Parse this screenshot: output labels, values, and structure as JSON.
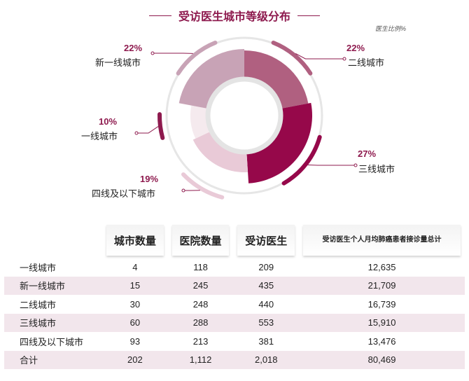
{
  "title": "受访医生城市等级分布",
  "unit_note": "医生比例%",
  "colors": {
    "accent": "#8e1a4e",
    "slices": [
      "#b06080",
      "#96084a",
      "#e9cad7",
      "#f5eaee",
      "#c8a3b6"
    ]
  },
  "chart_data": {
    "type": "pie",
    "title": "受访医生城市等级分布",
    "categories": [
      "二线城市",
      "三线城市",
      "四线及以下城市",
      "一线城市",
      "新一线城市"
    ],
    "values": [
      22,
      27,
      19,
      10,
      22
    ],
    "labels": [
      "22%",
      "27%",
      "19%",
      "10%",
      "22%"
    ]
  },
  "table": {
    "headers": [
      "",
      "城市数量",
      "医院数量",
      "受访医生",
      "受访医生个人月均肺癌患者接诊量总计"
    ],
    "header_last_lines": [
      "受访医生个人月均",
      "肺癌患者接诊量总计"
    ],
    "rows": [
      {
        "name": "一线城市",
        "cells": [
          "4",
          "118",
          "209",
          "12,635"
        ]
      },
      {
        "name": "新一线城市",
        "cells": [
          "15",
          "245",
          "435",
          "21,709"
        ]
      },
      {
        "name": "二线城市",
        "cells": [
          "30",
          "248",
          "440",
          "16,739"
        ]
      },
      {
        "name": "三线城市",
        "cells": [
          "60",
          "288",
          "553",
          "15,910"
        ]
      },
      {
        "name": "四线及以下城市",
        "cells": [
          "93",
          "213",
          "381",
          "13,476"
        ]
      },
      {
        "name": "合计",
        "cells": [
          "202",
          "1,112",
          "2,018",
          "80,469"
        ]
      }
    ]
  }
}
